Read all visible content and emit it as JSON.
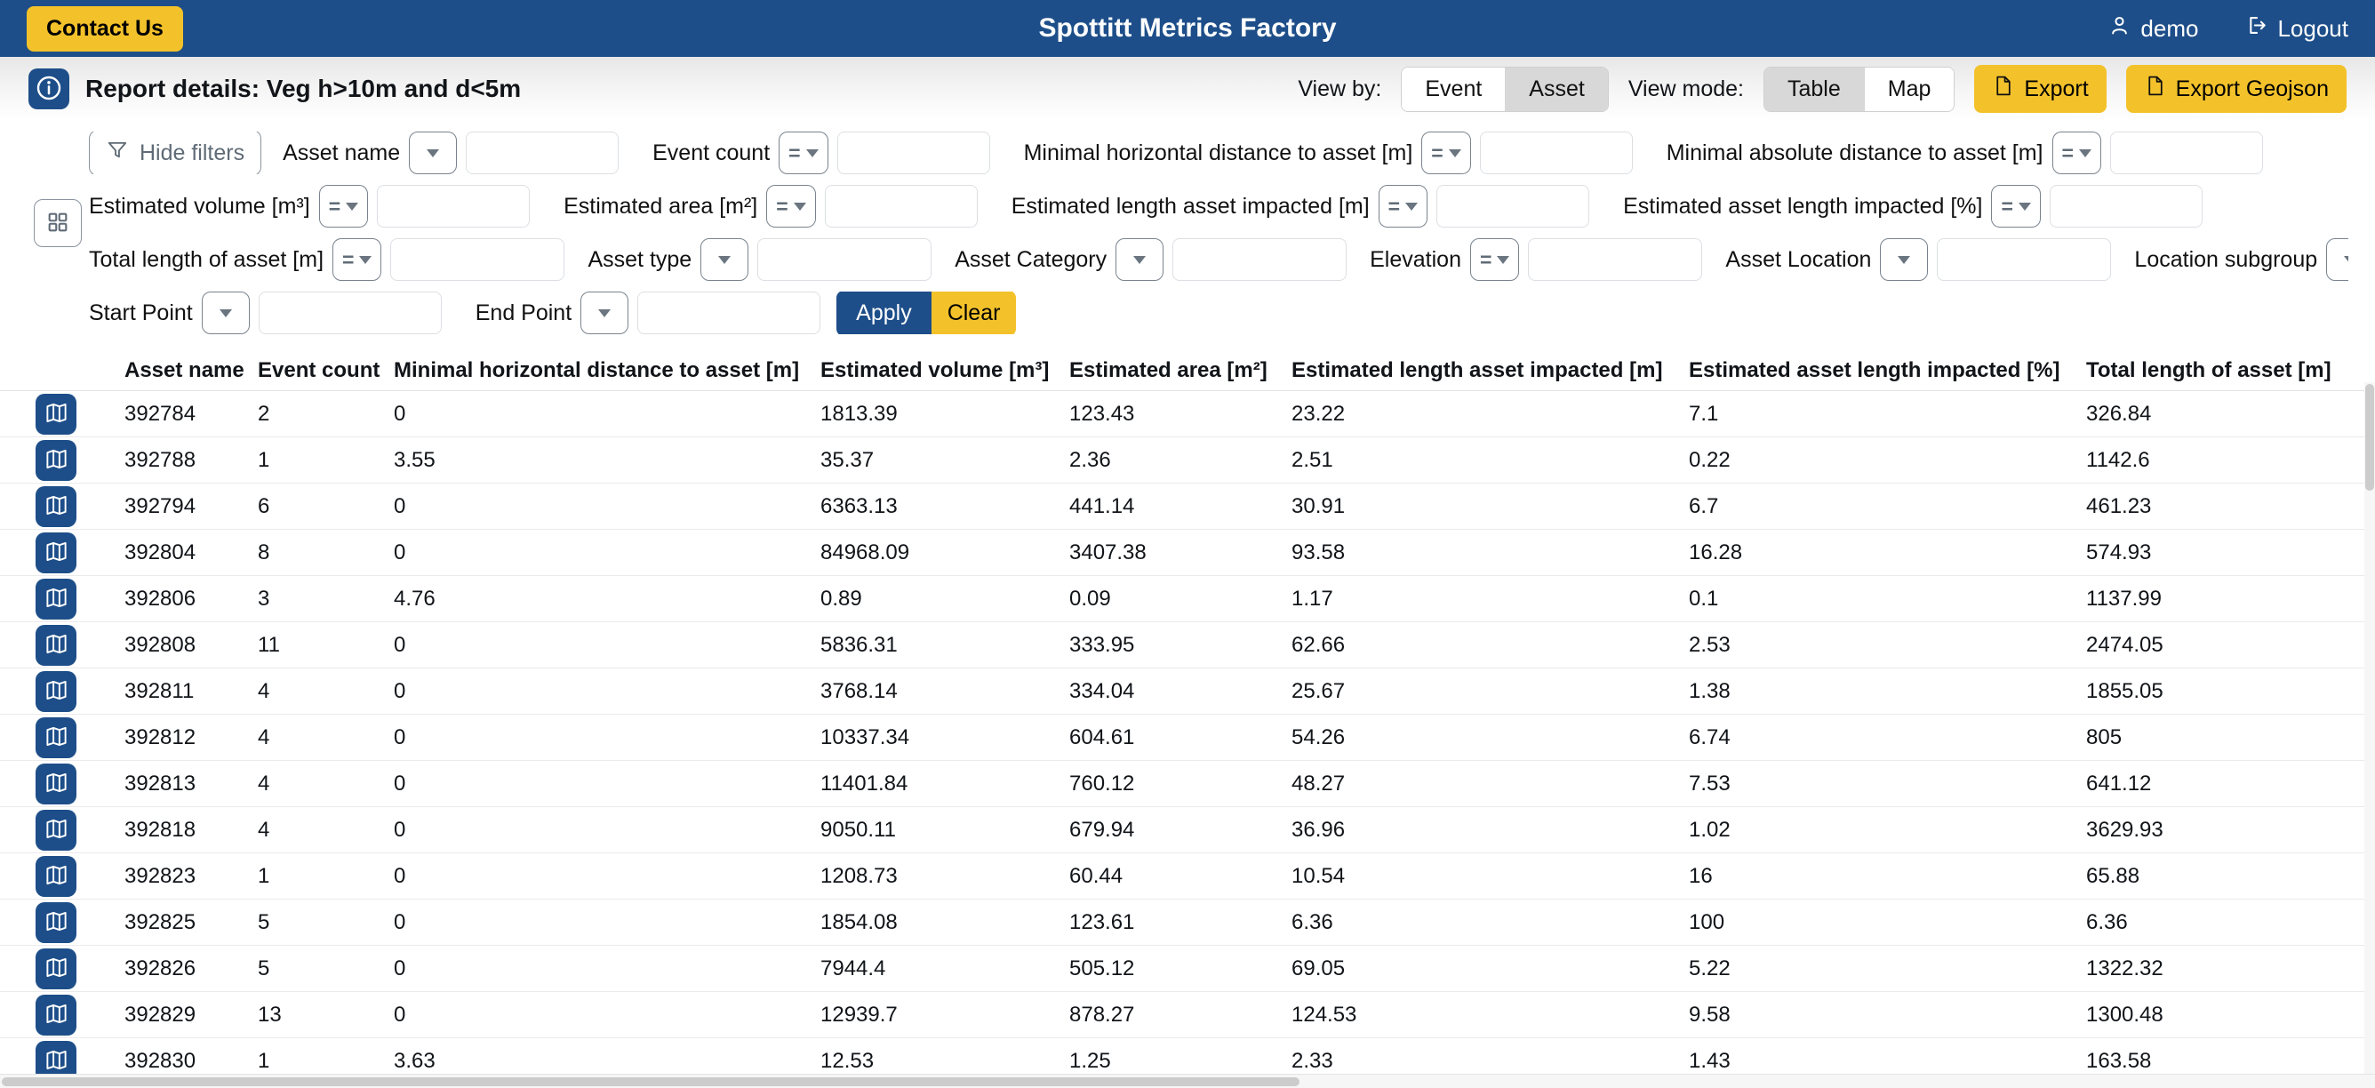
{
  "header": {
    "contact_us_label": "Contact Us",
    "title": "Spottitt Metrics Factory",
    "user_name": "demo",
    "logout_label": "Logout"
  },
  "toolbar": {
    "report_title": "Report details: Veg h>10m and d<5m",
    "view_by_label": "View by:",
    "view_by_options": [
      "Event",
      "Asset"
    ],
    "view_by_selected": "Asset",
    "view_mode_label": "View mode:",
    "view_mode_options": [
      "Table",
      "Map"
    ],
    "view_mode_selected": "Table",
    "export_label": "Export",
    "export_geojson_label": "Export Geojson"
  },
  "filters": {
    "hide_filters_label": "Hide filters",
    "apply_label": "Apply",
    "clear_label": "Clear",
    "fields": [
      {
        "row": 1,
        "label": "Asset name",
        "operator": "none",
        "value": ""
      },
      {
        "row": 1,
        "label": "Event count",
        "operator": "eq",
        "value": ""
      },
      {
        "row": 1,
        "label": "Minimal horizontal distance to asset [m]",
        "operator": "eq",
        "value": ""
      },
      {
        "row": 1,
        "label": "Minimal absolute distance to asset [m]",
        "operator": "eq",
        "value": ""
      },
      {
        "row": 2,
        "label": "Estimated volume [m³]",
        "operator": "eq",
        "value": ""
      },
      {
        "row": 2,
        "label": "Estimated area [m²]",
        "operator": "eq",
        "value": ""
      },
      {
        "row": 2,
        "label": "Estimated length asset impacted [m]",
        "operator": "eq",
        "value": ""
      },
      {
        "row": 2,
        "label": "Estimated asset length impacted [%]",
        "operator": "eq",
        "value": ""
      },
      {
        "row": 3,
        "label": "Total length of asset [m]",
        "operator": "eq",
        "value": ""
      },
      {
        "row": 3,
        "label": "Asset type",
        "operator": "none",
        "value": ""
      },
      {
        "row": 3,
        "label": "Asset Category",
        "operator": "none",
        "value": ""
      },
      {
        "row": 3,
        "label": "Elevation",
        "operator": "eq",
        "value": ""
      },
      {
        "row": 3,
        "label": "Asset Location",
        "operator": "none",
        "value": ""
      },
      {
        "row": 3,
        "label": "Location subgroup",
        "operator": "none",
        "value": ""
      },
      {
        "row": 4,
        "label": "Start Point",
        "operator": "none",
        "value": ""
      },
      {
        "row": 4,
        "label": "End Point",
        "operator": "none",
        "value": ""
      }
    ]
  },
  "table": {
    "columns": [
      "Asset name",
      "Event count",
      "Minimal horizontal distance to asset [m]",
      "Estimated volume [m³]",
      "Estimated area [m²]",
      "Estimated length asset impacted [m]",
      "Estimated asset length impacted [%]",
      "Total length of asset [m]"
    ],
    "rows": [
      [
        "392784",
        "2",
        "0",
        "1813.39",
        "123.43",
        "23.22",
        "7.1",
        "326.84"
      ],
      [
        "392788",
        "1",
        "3.55",
        "35.37",
        "2.36",
        "2.51",
        "0.22",
        "1142.6"
      ],
      [
        "392794",
        "6",
        "0",
        "6363.13",
        "441.14",
        "30.91",
        "6.7",
        "461.23"
      ],
      [
        "392804",
        "8",
        "0",
        "84968.09",
        "3407.38",
        "93.58",
        "16.28",
        "574.93"
      ],
      [
        "392806",
        "3",
        "4.76",
        "0.89",
        "0.09",
        "1.17",
        "0.1",
        "1137.99"
      ],
      [
        "392808",
        "11",
        "0",
        "5836.31",
        "333.95",
        "62.66",
        "2.53",
        "2474.05"
      ],
      [
        "392811",
        "4",
        "0",
        "3768.14",
        "334.04",
        "25.67",
        "1.38",
        "1855.05"
      ],
      [
        "392812",
        "4",
        "0",
        "10337.34",
        "604.61",
        "54.26",
        "6.74",
        "805"
      ],
      [
        "392813",
        "4",
        "0",
        "11401.84",
        "760.12",
        "48.27",
        "7.53",
        "641.12"
      ],
      [
        "392818",
        "4",
        "0",
        "9050.11",
        "679.94",
        "36.96",
        "1.02",
        "3629.93"
      ],
      [
        "392823",
        "1",
        "0",
        "1208.73",
        "60.44",
        "10.54",
        "16",
        "65.88"
      ],
      [
        "392825",
        "5",
        "0",
        "1854.08",
        "123.61",
        "6.36",
        "100",
        "6.36"
      ],
      [
        "392826",
        "5",
        "0",
        "7944.4",
        "505.12",
        "69.05",
        "5.22",
        "1322.32"
      ],
      [
        "392829",
        "13",
        "0",
        "12939.7",
        "878.27",
        "124.53",
        "9.58",
        "1300.48"
      ],
      [
        "392830",
        "1",
        "3.63",
        "12.53",
        "1.25",
        "2.33",
        "1.43",
        "163.58"
      ]
    ]
  },
  "colors": {
    "navbar": "#1d4e89",
    "accent_yellow": "#f3c22b",
    "selected_segment": "#d8d8d8",
    "row_separator": "#ebebeb"
  }
}
